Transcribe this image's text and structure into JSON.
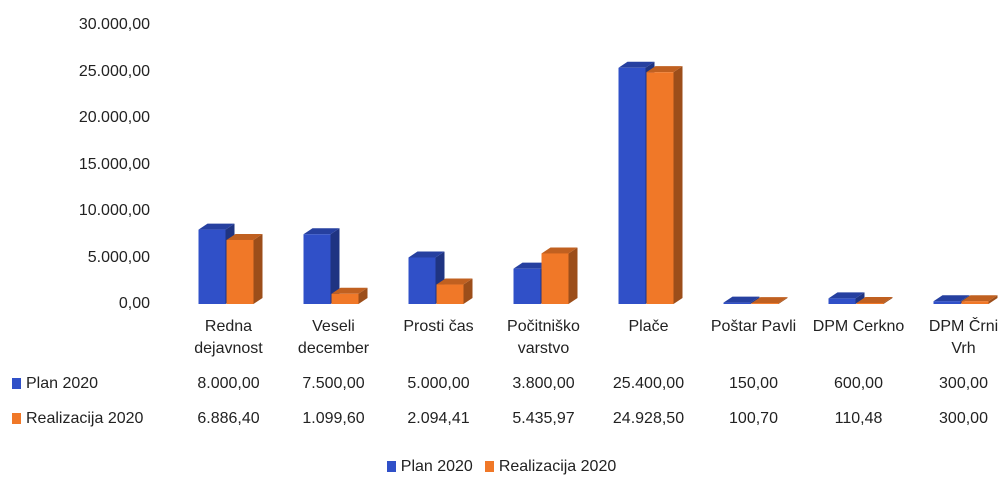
{
  "chart_data": {
    "type": "bar3d",
    "categories": [
      "Redna dejavnost",
      "Veseli december",
      "Prosti čas",
      "Počitniško varstvo",
      "Plače",
      "Poštar Pavli",
      "DPM Cerkno",
      "DPM Črni Vrh"
    ],
    "series": [
      {
        "name": "Plan 2020",
        "color": "#3050c8",
        "values": [
          8000,
          7500,
          5000,
          3800,
          25400,
          150,
          600,
          300
        ],
        "value_labels": [
          "8.000,00",
          "7.500,00",
          "5.000,00",
          "3.800,00",
          "25.400,00",
          "150,00",
          "600,00",
          "300,00"
        ]
      },
      {
        "name": "Realizacija 2020",
        "color": "#f07828",
        "values": [
          6886.4,
          1099.6,
          2094.41,
          5435.97,
          24928.5,
          100.7,
          110.48,
          300
        ],
        "value_labels": [
          "6.886,40",
          "1.099,60",
          "2.094,41",
          "5.435,97",
          "24.928,50",
          "100,70",
          "110,48",
          "300,00"
        ]
      }
    ],
    "ylim": [
      0,
      30000
    ],
    "yticks": [
      {
        "value": 0,
        "label": "0,00"
      },
      {
        "value": 5000,
        "label": "5.000,00"
      },
      {
        "value": 10000,
        "label": "10.000,00"
      },
      {
        "value": 15000,
        "label": "15.000,00"
      },
      {
        "value": 20000,
        "label": "20.000,00"
      },
      {
        "value": 25000,
        "label": "25.000,00"
      },
      {
        "value": 30000,
        "label": "30.000,00"
      }
    ],
    "grid": false,
    "legend": "bottom",
    "data_table": true
  }
}
